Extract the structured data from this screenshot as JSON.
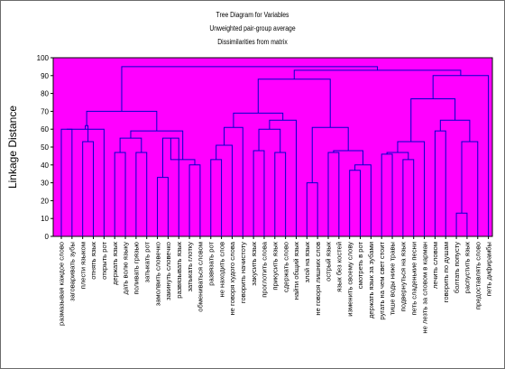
{
  "chart_data": {
    "type": "dendrogram",
    "title": "Tree Diagram for Variables",
    "subtitle1": "Unweighted pair-group average",
    "subtitle2": "Dissimilarities from matrix",
    "ylabel": "Linkage Distance",
    "ylim": [
      0,
      100
    ],
    "yticks": [
      0,
      10,
      20,
      30,
      40,
      50,
      60,
      70,
      80,
      90,
      100
    ],
    "grid": false,
    "colors": {
      "plot_bg": "#ff00ff",
      "tree": "#0000cc",
      "axis": "#000000"
    },
    "leaves": [
      "размазывая каждое слово",
      "заговаривать зубы",
      "плести языком",
      "отнять язык",
      "открыть рот",
      "держать язык",
      "дать волю языку",
      "поливать грязью",
      "затыкать рот",
      "замолвить словечко",
      "закинуть словечко",
      "развязывать язык",
      "затыкать глотку",
      "обмениваться словом",
      "развязать рот",
      "не находить слов",
      "не говоря худого слова",
      "говорить начистоту",
      "закусить язык",
      "проглотить слова",
      "прикусить язык",
      "сдержать слово",
      "найти общий язык",
      "злой на язык",
      "не говоря лишних слов",
      "острый язык",
      "язык без костей",
      "изменить своему слову",
      "смотреть в рот",
      "держать язык за зубами",
      "ругать на чем свет стоит",
      "тише воды ниже травы",
      "подвернуться на язык",
      "петь сладенькие песни",
      "не лезть за словом в карман",
      "лечить словом",
      "говорить по душам",
      "болтать попусту",
      "распустить язык",
      "предоставлять слово",
      "петь дифирамбы"
    ],
    "merges": [
      [
        0,
        1,
        60
      ],
      [
        2,
        3,
        53
      ],
      [
        41,
        4,
        60
      ],
      [
        42,
        43,
        62
      ],
      [
        5,
        6,
        47
      ],
      [
        7,
        8,
        47
      ],
      [
        45,
        46,
        55
      ],
      [
        9,
        10,
        33
      ],
      [
        48,
        11,
        55
      ],
      [
        12,
        13,
        40
      ],
      [
        49,
        50,
        43
      ],
      [
        47,
        51,
        59
      ],
      [
        44,
        52,
        70
      ],
      [
        14,
        15,
        43
      ],
      [
        54,
        16,
        51
      ],
      [
        55,
        17,
        61
      ],
      [
        18,
        19,
        48
      ],
      [
        20,
        21,
        47
      ],
      [
        57,
        58,
        60
      ],
      [
        59,
        22,
        65
      ],
      [
        56,
        60,
        69
      ],
      [
        23,
        24,
        30
      ],
      [
        25,
        26,
        47
      ],
      [
        27,
        28,
        37
      ],
      [
        64,
        29,
        40
      ],
      [
        63,
        65,
        48
      ],
      [
        62,
        66,
        61
      ],
      [
        61,
        67,
        88
      ],
      [
        30,
        31,
        46
      ],
      [
        32,
        33,
        43
      ],
      [
        69,
        70,
        47
      ],
      [
        71,
        34,
        53
      ],
      [
        35,
        36,
        59
      ],
      [
        37,
        38,
        13
      ],
      [
        74,
        39,
        53
      ],
      [
        73,
        75,
        65
      ],
      [
        72,
        76,
        77
      ],
      [
        77,
        40,
        90
      ],
      [
        68,
        78,
        93
      ],
      [
        53,
        79,
        95
      ]
    ]
  }
}
